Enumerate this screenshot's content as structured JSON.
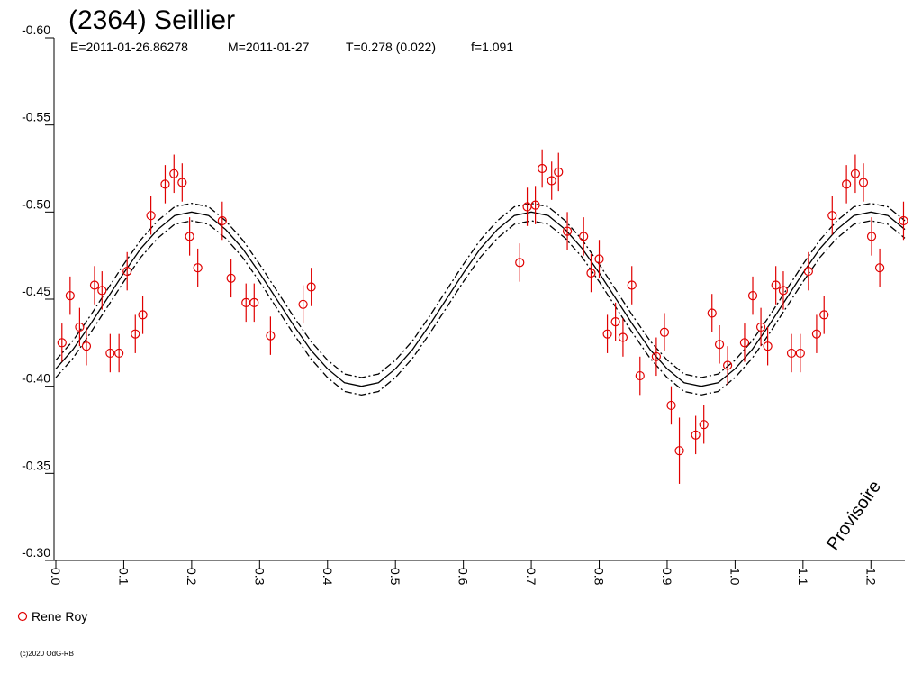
{
  "chart_data": {
    "type": "scatter",
    "title": "(2364) Seillier",
    "subtitle": [
      "E=2011-01-26.86278",
      "M=2011-01-27",
      "T=0.278 (0.022)",
      "f=1.091"
    ],
    "watermark": "Provisoire",
    "footer": "(c)2020 OdG-RB",
    "xlim": [
      0,
      1.25
    ],
    "ylim": [
      -0.6,
      -0.3
    ],
    "y_inverted": true,
    "xticks": [
      {
        "value": 0,
        "label": "0.0"
      },
      0.1,
      0.2,
      0.3,
      0.4,
      0.5,
      0.6,
      0.7,
      0.8,
      0.9,
      {
        "value": 1,
        "label": "1.0"
      },
      1.1,
      1.2
    ],
    "yticks": [
      {
        "value": -0.6,
        "label": "-0.60"
      },
      -0.55,
      {
        "value": -0.5,
        "label": "-0.50"
      },
      -0.45,
      {
        "value": -0.4,
        "label": "-0.40"
      },
      -0.35,
      {
        "value": -0.3,
        "label": "-0.30"
      }
    ],
    "series": [
      {
        "name": "Rene Roy",
        "color": "#e00000",
        "x": [
          0.009,
          0.021,
          0.035,
          0.045,
          0.057,
          0.068,
          0.08,
          0.093,
          0.105,
          0.117,
          0.128,
          0.14,
          0.161,
          0.174,
          0.186,
          0.197,
          0.209,
          0.245,
          0.258,
          0.28,
          0.292,
          0.316,
          0.364,
          0.376,
          0.683,
          0.694,
          0.706,
          0.716,
          0.73,
          0.74,
          0.753,
          0.777,
          0.788,
          0.8,
          0.812,
          0.824,
          0.835,
          0.848,
          0.86,
          0.884,
          0.896,
          0.906,
          0.918,
          0.942,
          0.954,
          0.966,
          0.977,
          0.989,
          1.014,
          1.026,
          1.038,
          1.048,
          1.06,
          1.071,
          1.083,
          1.096,
          1.108,
          1.12,
          1.131,
          1.143,
          1.164,
          1.177,
          1.189,
          1.201,
          1.213,
          1.248
        ],
        "values": [
          -0.425,
          -0.452,
          -0.434,
          -0.423,
          -0.458,
          -0.455,
          -0.419,
          -0.419,
          -0.466,
          -0.43,
          -0.441,
          -0.498,
          -0.516,
          -0.522,
          -0.517,
          -0.486,
          -0.468,
          -0.495,
          -0.462,
          -0.448,
          -0.448,
          -0.429,
          -0.447,
          -0.457,
          -0.471,
          -0.503,
          -0.504,
          -0.525,
          -0.518,
          -0.523,
          -0.489,
          -0.486,
          -0.465,
          -0.473,
          -0.43,
          -0.437,
          -0.428,
          -0.458,
          -0.406,
          -0.417,
          -0.431,
          -0.389,
          -0.363,
          -0.372,
          -0.378,
          -0.442,
          -0.424,
          -0.412,
          -0.425,
          -0.452,
          -0.434,
          -0.423,
          -0.458,
          -0.455,
          -0.419,
          -0.419,
          -0.466,
          -0.43,
          -0.441,
          -0.498,
          -0.516,
          -0.522,
          -0.517,
          -0.486,
          -0.468,
          -0.495
        ],
        "errors": [
          0.011,
          0.011,
          0.011,
          0.011,
          0.011,
          0.011,
          0.011,
          0.011,
          0.011,
          0.011,
          0.011,
          0.011,
          0.011,
          0.011,
          0.011,
          0.011,
          0.011,
          0.011,
          0.011,
          0.011,
          0.011,
          0.011,
          0.011,
          0.011,
          0.011,
          0.011,
          0.011,
          0.011,
          0.011,
          0.011,
          0.011,
          0.011,
          0.011,
          0.011,
          0.011,
          0.011,
          0.011,
          0.011,
          0.011,
          0.011,
          0.011,
          0.011,
          0.019,
          0.011,
          0.011,
          0.011,
          0.011,
          0.011,
          0.011,
          0.011,
          0.011,
          0.011,
          0.011,
          0.011,
          0.011,
          0.011,
          0.011,
          0.011,
          0.011,
          0.011,
          0.011,
          0.011,
          0.011,
          0.011,
          0.011,
          0.011
        ]
      }
    ],
    "model": {
      "x": [
        0,
        0.025,
        0.05,
        0.075,
        0.1,
        0.125,
        0.15,
        0.175,
        0.2,
        0.225,
        0.25,
        0.275,
        0.3,
        0.325,
        0.35,
        0.375,
        0.4,
        0.425,
        0.45,
        0.475,
        0.5,
        0.525,
        0.55,
        0.575,
        0.6,
        0.625,
        0.65,
        0.675,
        0.7,
        0.725,
        0.75,
        0.775,
        0.8,
        0.825,
        0.85,
        0.875,
        0.9,
        0.925,
        0.95,
        0.975,
        1,
        1.025,
        1.05,
        1.075,
        1.1,
        1.125,
        1.15,
        1.175,
        1.2,
        1.225,
        1.25
      ],
      "series": [
        {
          "color": "#000000",
          "dash": "solid",
          "values": [
            -0.41,
            -0.421,
            -0.435,
            -0.45,
            -0.465,
            -0.479,
            -0.49,
            -0.498,
            -0.5,
            -0.498,
            -0.49,
            -0.479,
            -0.465,
            -0.45,
            -0.435,
            -0.421,
            -0.41,
            -0.402,
            -0.4,
            -0.402,
            -0.41,
            -0.421,
            -0.435,
            -0.45,
            -0.465,
            -0.479,
            -0.49,
            -0.498,
            -0.5,
            -0.498,
            -0.49,
            -0.479,
            -0.465,
            -0.45,
            -0.435,
            -0.421,
            -0.41,
            -0.402,
            -0.4,
            -0.402,
            -0.41,
            -0.421,
            -0.435,
            -0.45,
            -0.465,
            -0.479,
            -0.49,
            -0.498,
            -0.5,
            -0.498,
            -0.49
          ]
        },
        {
          "color": "#000000",
          "dash": "dashdot",
          "values": [
            -0.415,
            -0.426,
            -0.44,
            -0.455,
            -0.47,
            -0.484,
            -0.495,
            -0.503,
            -0.505,
            -0.503,
            -0.495,
            -0.484,
            -0.47,
            -0.455,
            -0.44,
            -0.426,
            -0.415,
            -0.407,
            -0.405,
            -0.407,
            -0.415,
            -0.426,
            -0.44,
            -0.455,
            -0.47,
            -0.484,
            -0.495,
            -0.503,
            -0.505,
            -0.503,
            -0.495,
            -0.484,
            -0.47,
            -0.455,
            -0.44,
            -0.426,
            -0.415,
            -0.407,
            -0.405,
            -0.407,
            -0.415,
            -0.426,
            -0.44,
            -0.455,
            -0.47,
            -0.484,
            -0.495,
            -0.503,
            -0.505,
            -0.503,
            -0.495
          ]
        },
        {
          "color": "#000000",
          "dash": "dashdot",
          "values": [
            -0.405,
            -0.416,
            -0.43,
            -0.445,
            -0.46,
            -0.474,
            -0.485,
            -0.493,
            -0.495,
            -0.493,
            -0.485,
            -0.474,
            -0.46,
            -0.445,
            -0.43,
            -0.416,
            -0.405,
            -0.397,
            -0.395,
            -0.397,
            -0.405,
            -0.416,
            -0.43,
            -0.445,
            -0.46,
            -0.474,
            -0.485,
            -0.493,
            -0.495,
            -0.493,
            -0.485,
            -0.474,
            -0.46,
            -0.445,
            -0.43,
            -0.416,
            -0.405,
            -0.397,
            -0.395,
            -0.397,
            -0.405,
            -0.416,
            -0.43,
            -0.445,
            -0.46,
            -0.474,
            -0.485,
            -0.493,
            -0.495,
            -0.493,
            -0.485
          ]
        }
      ]
    }
  }
}
